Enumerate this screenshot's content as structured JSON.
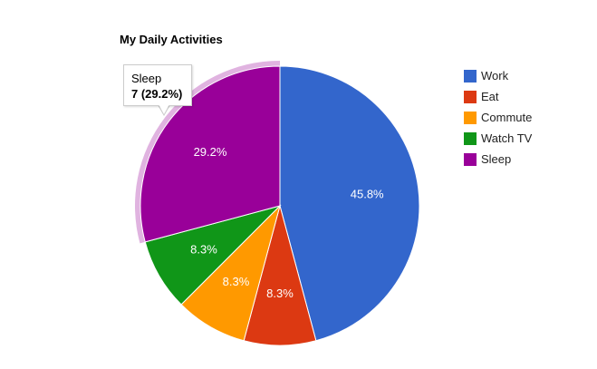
{
  "chart_data": {
    "type": "pie",
    "title": "My Daily Activities",
    "slices": [
      {
        "label": "Work",
        "value": 11,
        "percent_label": "45.8%",
        "color": "#3366cc"
      },
      {
        "label": "Eat",
        "value": 2,
        "percent_label": "8.3%",
        "color": "#dc3912"
      },
      {
        "label": "Commute",
        "value": 2,
        "percent_label": "8.3%",
        "color": "#ff9900"
      },
      {
        "label": "Watch TV",
        "value": 2,
        "percent_label": "8.3%",
        "color": "#109618"
      },
      {
        "label": "Sleep",
        "value": 7,
        "percent_label": "29.2%",
        "color": "#990099"
      }
    ],
    "legend_position": "right",
    "highlighted_slice": "Sleep",
    "highlight_color": "#e0b3e0"
  },
  "tooltip": {
    "label": "Sleep",
    "value_text": "7 (29.2%)"
  }
}
